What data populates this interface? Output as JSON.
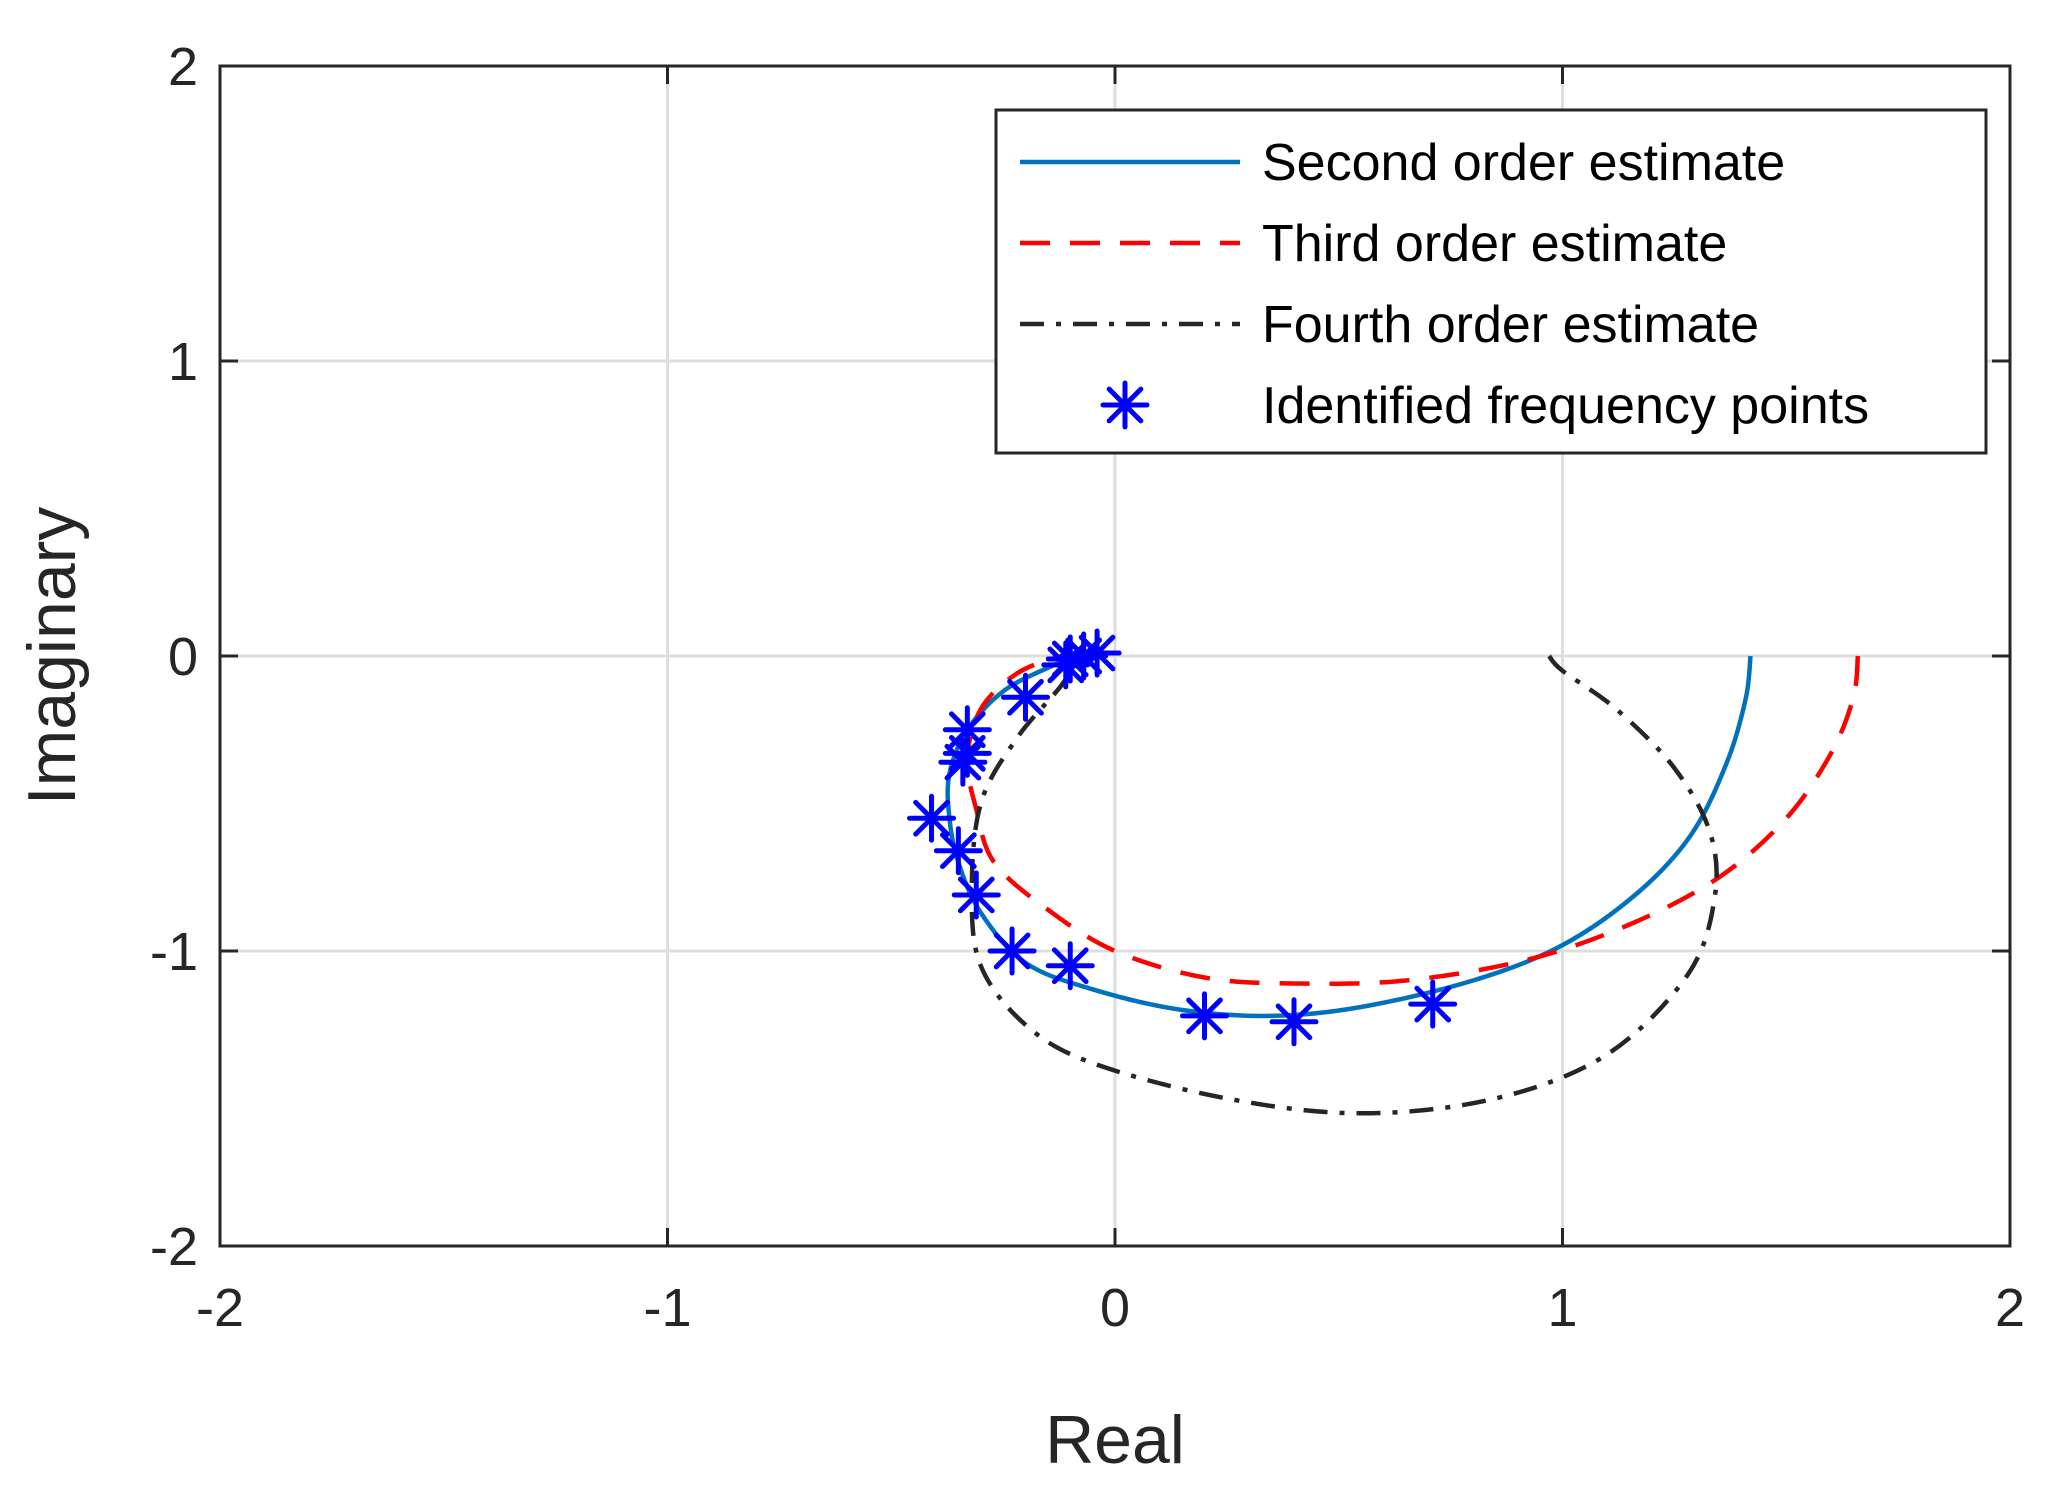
{
  "chart_data": {
    "type": "line",
    "title": "",
    "xlabel": "Real",
    "ylabel": "Imaginary",
    "xlim": [
      -2,
      2
    ],
    "ylim": [
      -2,
      2
    ],
    "xticks": [
      -2,
      -1,
      0,
      1,
      2
    ],
    "yticks": [
      -2,
      -1,
      0,
      1,
      2
    ],
    "xtick_labels": [
      "-2",
      "-1",
      "0",
      "1",
      "2"
    ],
    "ytick_labels": [
      "-2",
      "-1",
      "0",
      "1",
      "2"
    ],
    "grid": true,
    "legend_position": "top-right",
    "series": [
      {
        "name": "Second order estimate",
        "style": "solid",
        "color": "#0072BD",
        "points": [
          [
            1.42,
            0.0
          ],
          [
            1.41,
            -0.14
          ],
          [
            1.37,
            -0.35
          ],
          [
            1.29,
            -0.6
          ],
          [
            1.17,
            -0.8
          ],
          [
            1.0,
            -0.98
          ],
          [
            0.8,
            -1.1
          ],
          [
            0.55,
            -1.19
          ],
          [
            0.35,
            -1.22
          ],
          [
            0.15,
            -1.2
          ],
          [
            -0.05,
            -1.13
          ],
          [
            -0.2,
            -1.04
          ],
          [
            -0.3,
            -0.87
          ],
          [
            -0.35,
            -0.7
          ],
          [
            -0.37,
            -0.55
          ],
          [
            -0.37,
            -0.4
          ],
          [
            -0.33,
            -0.25
          ],
          [
            -0.25,
            -0.12
          ],
          [
            -0.15,
            -0.04
          ],
          [
            -0.08,
            0.0
          ],
          [
            -0.03,
            0.0
          ]
        ]
      },
      {
        "name": "Third order estimate",
        "style": "dashed",
        "color": "#FF0000",
        "points": [
          [
            1.66,
            0.0
          ],
          [
            1.65,
            -0.14
          ],
          [
            1.6,
            -0.33
          ],
          [
            1.5,
            -0.55
          ],
          [
            1.35,
            -0.75
          ],
          [
            1.15,
            -0.91
          ],
          [
            0.92,
            -1.03
          ],
          [
            0.65,
            -1.1
          ],
          [
            0.4,
            -1.11
          ],
          [
            0.2,
            -1.09
          ],
          [
            0.0,
            -1.0
          ],
          [
            -0.15,
            -0.86
          ],
          [
            -0.27,
            -0.7
          ],
          [
            -0.31,
            -0.52
          ],
          [
            -0.33,
            -0.35
          ],
          [
            -0.3,
            -0.18
          ],
          [
            -0.22,
            -0.06
          ],
          [
            -0.12,
            0.0
          ],
          [
            -0.04,
            0.02
          ]
        ]
      },
      {
        "name": "Fourth order estimate",
        "style": "dashdot",
        "color": "#262626",
        "points": [
          [
            0.97,
            0.0
          ],
          [
            1.0,
            -0.05
          ],
          [
            1.12,
            -0.18
          ],
          [
            1.25,
            -0.38
          ],
          [
            1.33,
            -0.6
          ],
          [
            1.34,
            -0.82
          ],
          [
            1.28,
            -1.08
          ],
          [
            1.1,
            -1.35
          ],
          [
            0.85,
            -1.5
          ],
          [
            0.55,
            -1.55
          ],
          [
            0.25,
            -1.5
          ],
          [
            -0.05,
            -1.38
          ],
          [
            -0.2,
            -1.25
          ],
          [
            -0.3,
            -1.05
          ],
          [
            -0.32,
            -0.8
          ],
          [
            -0.3,
            -0.5
          ],
          [
            -0.22,
            -0.28
          ],
          [
            -0.12,
            -0.1
          ],
          [
            -0.08,
            0.0
          ]
        ]
      },
      {
        "name": "Identified frequency points",
        "style": "marker",
        "color": "#0000FF",
        "points": [
          [
            -0.04,
            0.01
          ],
          [
            -0.07,
            0.0
          ],
          [
            -0.1,
            -0.01
          ],
          [
            -0.11,
            -0.03
          ],
          [
            -0.2,
            -0.14
          ],
          [
            -0.33,
            -0.25
          ],
          [
            -0.33,
            -0.33
          ],
          [
            -0.34,
            -0.36
          ],
          [
            -0.41,
            -0.55
          ],
          [
            -0.35,
            -0.66
          ],
          [
            -0.31,
            -0.81
          ],
          [
            -0.23,
            -1.0
          ],
          [
            -0.1,
            -1.05
          ],
          [
            0.2,
            -1.22
          ],
          [
            0.4,
            -1.24
          ],
          [
            0.71,
            -1.18
          ]
        ]
      }
    ]
  },
  "colors": {
    "axis": "#262626",
    "grid": "#DEDEDE",
    "background": "#FFFFFF"
  }
}
